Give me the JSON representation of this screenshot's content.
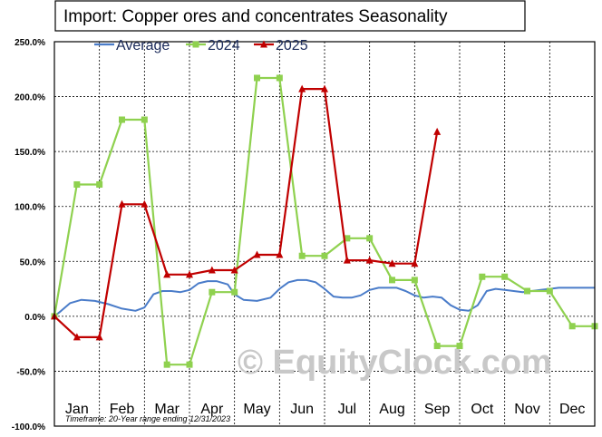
{
  "chart_data": {
    "type": "line",
    "title": "Import: Copper ores and concentrates Seasonality",
    "months": [
      "Jan",
      "Feb",
      "Mar",
      "Apr",
      "May",
      "Jun",
      "Jul",
      "Aug",
      "Sep",
      "Oct",
      "Nov",
      "Dec"
    ],
    "yticks": [
      "250.0%",
      "200.0%",
      "150.0%",
      "100.0%",
      "50.0%",
      "0.0%",
      "-50.0%",
      "-100.0%"
    ],
    "ylim": [
      -100,
      250
    ],
    "xlim": [
      0,
      12
    ],
    "grid": true,
    "legend": "top",
    "series": [
      {
        "name": "Average",
        "color": "#4a7cc9",
        "marker": "none",
        "x": [
          0,
          0.15,
          0.35,
          0.6,
          0.9,
          1.2,
          1.5,
          1.8,
          2.0,
          2.2,
          2.4,
          2.6,
          2.8,
          3.0,
          3.2,
          3.4,
          3.6,
          3.85,
          4.0,
          4.2,
          4.5,
          4.8,
          5.0,
          5.2,
          5.4,
          5.6,
          5.8,
          6.0,
          6.2,
          6.4,
          6.6,
          6.8,
          7.0,
          7.2,
          7.4,
          7.6,
          7.8,
          8.0,
          8.2,
          8.4,
          8.6,
          8.8,
          9.0,
          9.2,
          9.4,
          9.6,
          9.8,
          10.0,
          10.2,
          10.4,
          10.6,
          10.8,
          11.0,
          11.2,
          11.5,
          11.8,
          12.0
        ],
        "y": [
          0,
          5,
          12,
          15,
          14,
          11,
          7,
          5,
          8,
          20,
          23,
          23,
          22,
          24,
          30,
          32,
          32,
          29,
          20,
          15,
          14,
          17,
          25,
          31,
          33,
          33,
          31,
          25,
          18,
          17,
          17,
          19,
          24,
          26,
          26,
          26,
          23,
          19,
          17,
          18,
          17,
          10,
          6,
          5,
          10,
          23,
          25,
          24,
          23,
          22,
          23,
          24,
          25,
          26,
          26,
          26,
          26
        ]
      },
      {
        "name": "2024",
        "color": "#8fd14f",
        "marker": "square",
        "x": [
          0,
          0.5,
          1.0,
          1.5,
          2.0,
          2.5,
          3.0,
          3.5,
          4.0,
          4.5,
          5.0,
          5.5,
          6.0,
          6.5,
          7.0,
          7.5,
          8.0,
          8.5,
          9.0,
          9.5,
          10.0,
          10.5,
          11.0,
          11.5,
          12.0
        ],
        "y": [
          0,
          120,
          120,
          179,
          179,
          -44,
          -44,
          22,
          22,
          217,
          217,
          55,
          55,
          71,
          71,
          33,
          33,
          -27,
          -27,
          36,
          36,
          23,
          23,
          -9,
          -9
        ]
      },
      {
        "name": "2025",
        "color": "#c00000",
        "marker": "triangle",
        "x": [
          0,
          0.5,
          1.0,
          1.5,
          2.0,
          2.5,
          3.0,
          3.5,
          4.0,
          4.5,
          5.0,
          5.5,
          6.0,
          6.5,
          7.0,
          7.5,
          8.0,
          8.5
        ],
        "y": [
          0,
          -19,
          -19,
          102,
          102,
          38,
          38,
          42,
          42,
          56,
          56,
          207,
          207,
          51,
          51,
          48,
          48,
          168
        ]
      }
    ],
    "footnote": "Timeframe: 20-Year range ending 12/31/2023",
    "watermark": "© EquityClock.com"
  }
}
